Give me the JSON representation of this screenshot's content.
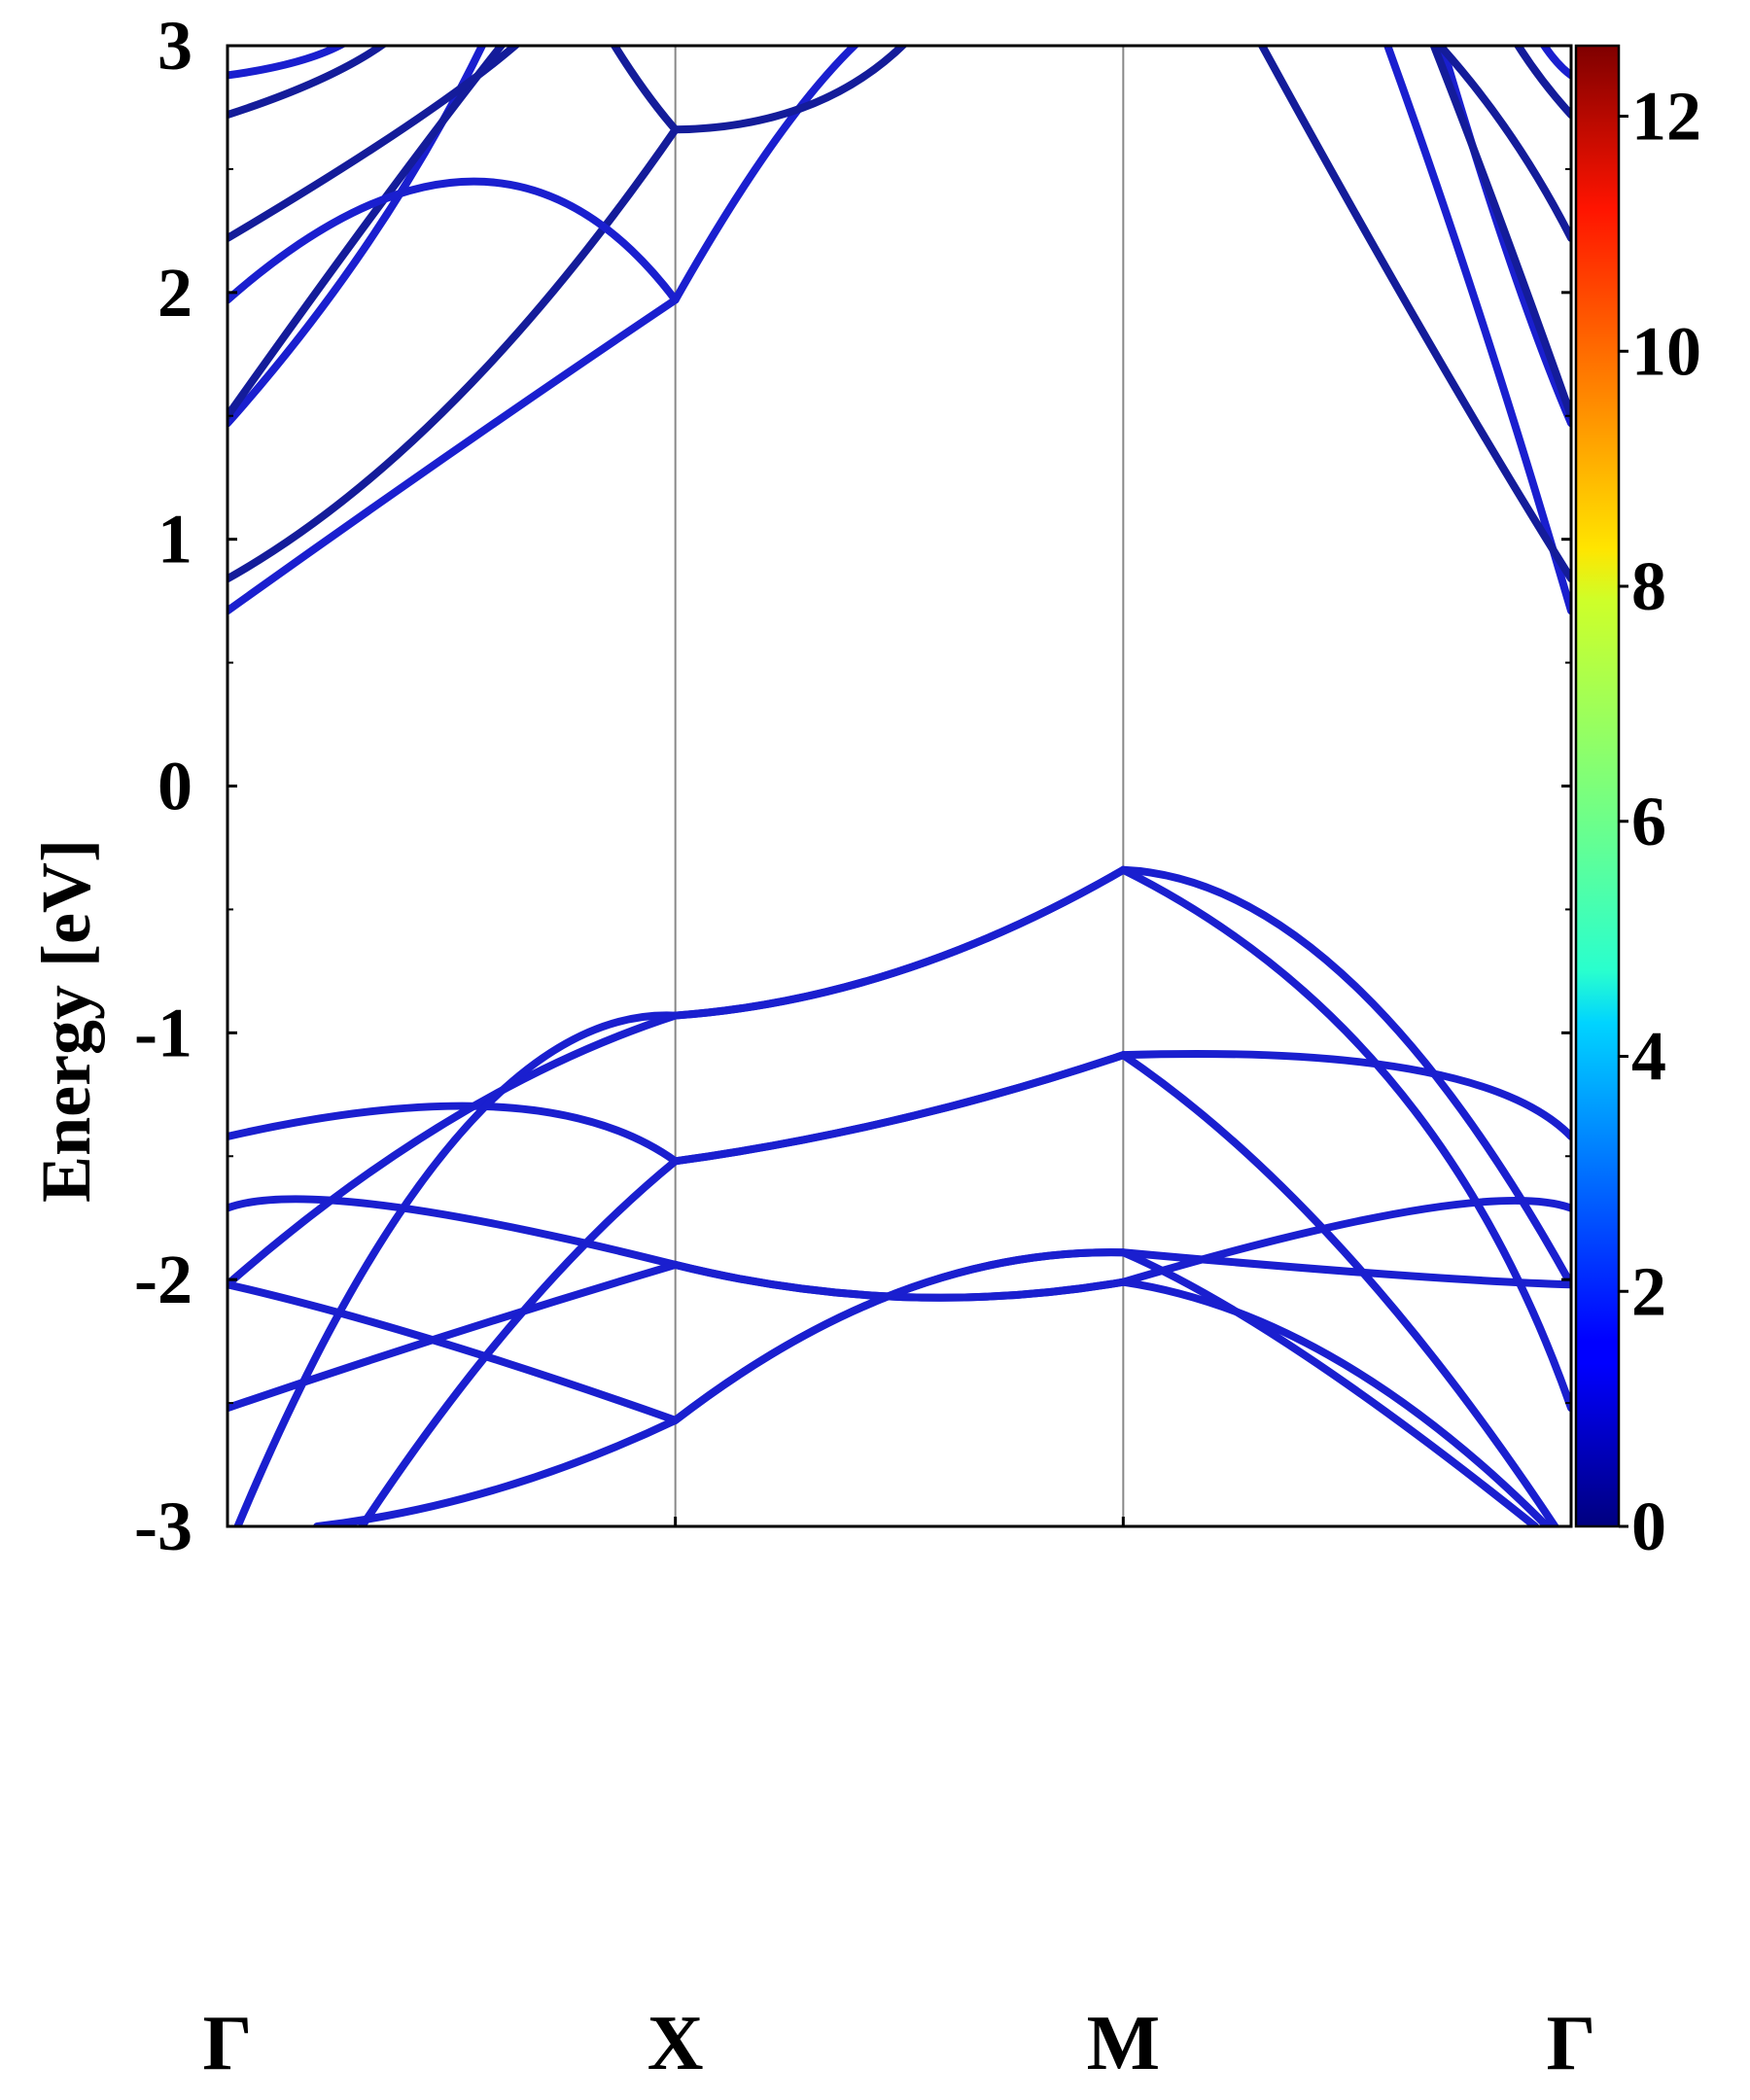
{
  "chart_data": {
    "type": "line",
    "ylabel": "Energy [eV]",
    "ylim": [
      -3,
      3
    ],
    "yticks": [
      {
        "value": 3,
        "label": "3"
      },
      {
        "value": 2,
        "label": "2"
      },
      {
        "value": 1,
        "label": "1"
      },
      {
        "value": 0,
        "label": "0"
      },
      {
        "value": -1,
        "label": "-1"
      },
      {
        "value": -2,
        "label": "-2"
      },
      {
        "value": -3,
        "label": "-3"
      }
    ],
    "yminor_ticks": [
      2.5,
      1.5,
      0.5,
      -0.5,
      -1.5,
      -2.5
    ],
    "xlim": [
      0,
      3
    ],
    "kpoints": [
      {
        "position": 0,
        "label": "Γ"
      },
      {
        "position": 1,
        "label": "X"
      },
      {
        "position": 2,
        "label": "M"
      },
      {
        "position": 3,
        "label": "Γ"
      }
    ],
    "vlines": [
      1,
      2
    ],
    "colorbar": {
      "colormap": "jet",
      "range": [
        0,
        12.6
      ],
      "ticks": [
        {
          "value": 0,
          "label": "0"
        },
        {
          "value": 2,
          "label": "2"
        },
        {
          "value": 4,
          "label": "4"
        },
        {
          "value": 6,
          "label": "6"
        },
        {
          "value": 8,
          "label": "8"
        },
        {
          "value": 10,
          "label": "10"
        },
        {
          "value": 12,
          "label": "12"
        }
      ]
    },
    "series": [
      {
        "color": "#1a1fcf",
        "segments": [
          [
            [
              0,
              -1.42
            ],
            [
              0.6,
              -1.3
            ],
            [
              1,
              -1.52
            ]
          ],
          [
            [
              1,
              -1.52
            ],
            [
              1.5,
              -1.35
            ],
            [
              2,
              -1.09
            ]
          ],
          [
            [
              2,
              -1.09
            ],
            [
              2.65,
              -1.15
            ],
            [
              3,
              -1.42
            ]
          ]
        ]
      },
      {
        "color": "#1a1fcf",
        "segments": [
          [
            [
              0,
              -1.71
            ],
            [
              0.35,
              -1.7
            ],
            [
              1,
              -1.94
            ]
          ],
          [
            [
              1,
              -1.94
            ],
            [
              1.5,
              -2.07
            ],
            [
              2,
              -2.01
            ]
          ],
          [
            [
              2,
              -2.01
            ],
            [
              2.65,
              -1.72
            ],
            [
              3,
              -1.71
            ]
          ]
        ]
      },
      {
        "color": "#1a1fcf",
        "segments": [
          [
            [
              0,
              -2.02
            ],
            [
              0.5,
              -1.35
            ],
            [
              1,
              -0.93
            ]
          ],
          [
            [
              1,
              -0.93
            ],
            [
              1.5,
              -0.75
            ],
            [
              2,
              -0.34
            ]
          ],
          [
            [
              2,
              -0.34
            ],
            [
              2.5,
              -0.78
            ],
            [
              3,
              -2.02
            ]
          ]
        ]
      },
      {
        "color": "#1a1fcf",
        "segments": [
          [
            [
              0,
              -2.02
            ],
            [
              0.45,
              -2.24
            ],
            [
              1,
              -2.57
            ]
          ],
          [
            [
              1,
              -2.57
            ],
            [
              1.5,
              -2.05
            ],
            [
              2,
              -1.89
            ]
          ],
          [
            [
              2,
              -1.89
            ],
            [
              2.6,
              -1.98
            ],
            [
              3,
              -2.02
            ]
          ]
        ]
      },
      {
        "color": "#1a1fcf",
        "segments": [
          [
            [
              0,
              -2.52
            ],
            [
              0.5,
              -2.22
            ],
            [
              1,
              -1.94
            ]
          ],
          [
            [
              1,
              -1.94
            ],
            [
              1.5,
              -2.07
            ],
            [
              2,
              -2.01
            ]
          ],
          [
            [
              2,
              -2.01
            ],
            [
              2.5,
              -2.35
            ],
            [
              3,
              -3.1
            ]
          ]
        ]
      },
      {
        "color": "#1a1fcf",
        "segments": [
          [
            [
              0,
              -3.1
            ],
            [
              0.5,
              -1.45
            ],
            [
              1,
              -0.93
            ]
          ],
          [
            [
              1,
              -0.93
            ],
            [
              1.5,
              -0.75
            ],
            [
              2,
              -0.34
            ]
          ],
          [
            [
              2,
              -0.34
            ],
            [
              2.6,
              -1.2
            ],
            [
              3,
              -2.52
            ]
          ]
        ]
      },
      {
        "color": "#1a1fcf",
        "segments": [
          [
            [
              0.3,
              -3.0
            ],
            [
              0.65,
              -2.15
            ],
            [
              1,
              -1.52
            ]
          ],
          [
            [
              1,
              -1.52
            ],
            [
              1.5,
              -1.35
            ],
            [
              2,
              -1.09
            ]
          ],
          [
            [
              2,
              -1.09
            ],
            [
              2.5,
              -1.9
            ],
            [
              3,
              -3.1
            ]
          ]
        ]
      },
      {
        "color": "#1a1fcf",
        "segments": [
          [
            [
              0.2,
              -3.0
            ],
            [
              0.6,
              -2.85
            ],
            [
              1,
              -2.57
            ]
          ],
          [
            [
              1,
              -2.57
            ],
            [
              1.5,
              -2.05
            ],
            [
              2,
              -1.89
            ]
          ],
          [
            [
              2,
              -1.89
            ],
            [
              2.4,
              -2.3
            ],
            [
              2.92,
              -3.0
            ]
          ]
        ]
      },
      {
        "color": "#1a1fcf",
        "segments": [
          [
            [
              0,
              0.71
            ],
            [
              0.5,
              1.35
            ],
            [
              1,
              1.97
            ]
          ],
          [
            [
              1,
              1.97
            ],
            [
              1.3,
              2.8
            ],
            [
              1.55,
              3.2
            ]
          ],
          [
            [
              2.55,
              3.2
            ],
            [
              2.78,
              2.0
            ],
            [
              3,
              0.71
            ]
          ]
        ]
      },
      {
        "color": "#141c9a",
        "segments": [
          [
            [
              0,
              0.84
            ],
            [
              0.5,
              1.55
            ],
            [
              1,
              2.66
            ]
          ],
          [
            [
              1,
              2.66
            ],
            [
              1.35,
              2.8
            ],
            [
              1.6,
              3.2
            ]
          ],
          [
            [
              2.25,
              3.2
            ],
            [
              2.65,
              1.9
            ],
            [
              3,
              0.84
            ]
          ]
        ]
      },
      {
        "color": "#1a1fcf",
        "segments": [
          [
            [
              0,
              1.47
            ],
            [
              0.35,
              2.3
            ],
            [
              0.62,
              3.2
            ]
          ],
          [
            [
              2.68,
              3.2
            ],
            [
              2.85,
              2.2
            ],
            [
              3,
              1.47
            ]
          ]
        ]
      },
      {
        "color": "#141c9a",
        "segments": [
          [
            [
              0,
              1.5
            ],
            [
              0.4,
              2.5
            ],
            [
              0.7,
              3.2
            ]
          ],
          [
            [
              2.65,
              3.2
            ],
            [
              2.82,
              2.4
            ],
            [
              3,
              1.5
            ]
          ]
        ]
      },
      {
        "color": "#1a1fcf",
        "segments": [
          [
            [
              0,
              1.97
            ],
            [
              0.55,
              2.45
            ],
            [
              1,
              1.97
            ]
          ]
        ]
      },
      {
        "color": "#141c9a",
        "segments": [
          [
            [
              0,
              2.22
            ],
            [
              0.5,
              2.8
            ],
            [
              0.75,
              3.2
            ]
          ],
          [
            [
              0.8,
              3.2
            ],
            [
              0.9,
              2.9
            ],
            [
              1,
              2.66
            ]
          ],
          [
            [
              2.6,
              3.2
            ],
            [
              2.82,
              2.75
            ],
            [
              3,
              2.22
            ]
          ]
        ]
      },
      {
        "color": "#141c9a",
        "segments": [
          [
            [
              0,
              2.72
            ],
            [
              0.3,
              2.95
            ],
            [
              0.45,
              3.2
            ]
          ],
          [
            [
              2.82,
              3.2
            ],
            [
              2.9,
              2.95
            ],
            [
              3,
              2.72
            ]
          ]
        ]
      },
      {
        "color": "#1a1fcf",
        "segments": [
          [
            [
              0,
              2.88
            ],
            [
              0.25,
              3.0
            ],
            [
              0.35,
              3.2
            ]
          ],
          [
            [
              2.88,
              3.2
            ],
            [
              2.94,
              3.0
            ],
            [
              3,
              2.88
            ]
          ]
        ]
      }
    ]
  }
}
